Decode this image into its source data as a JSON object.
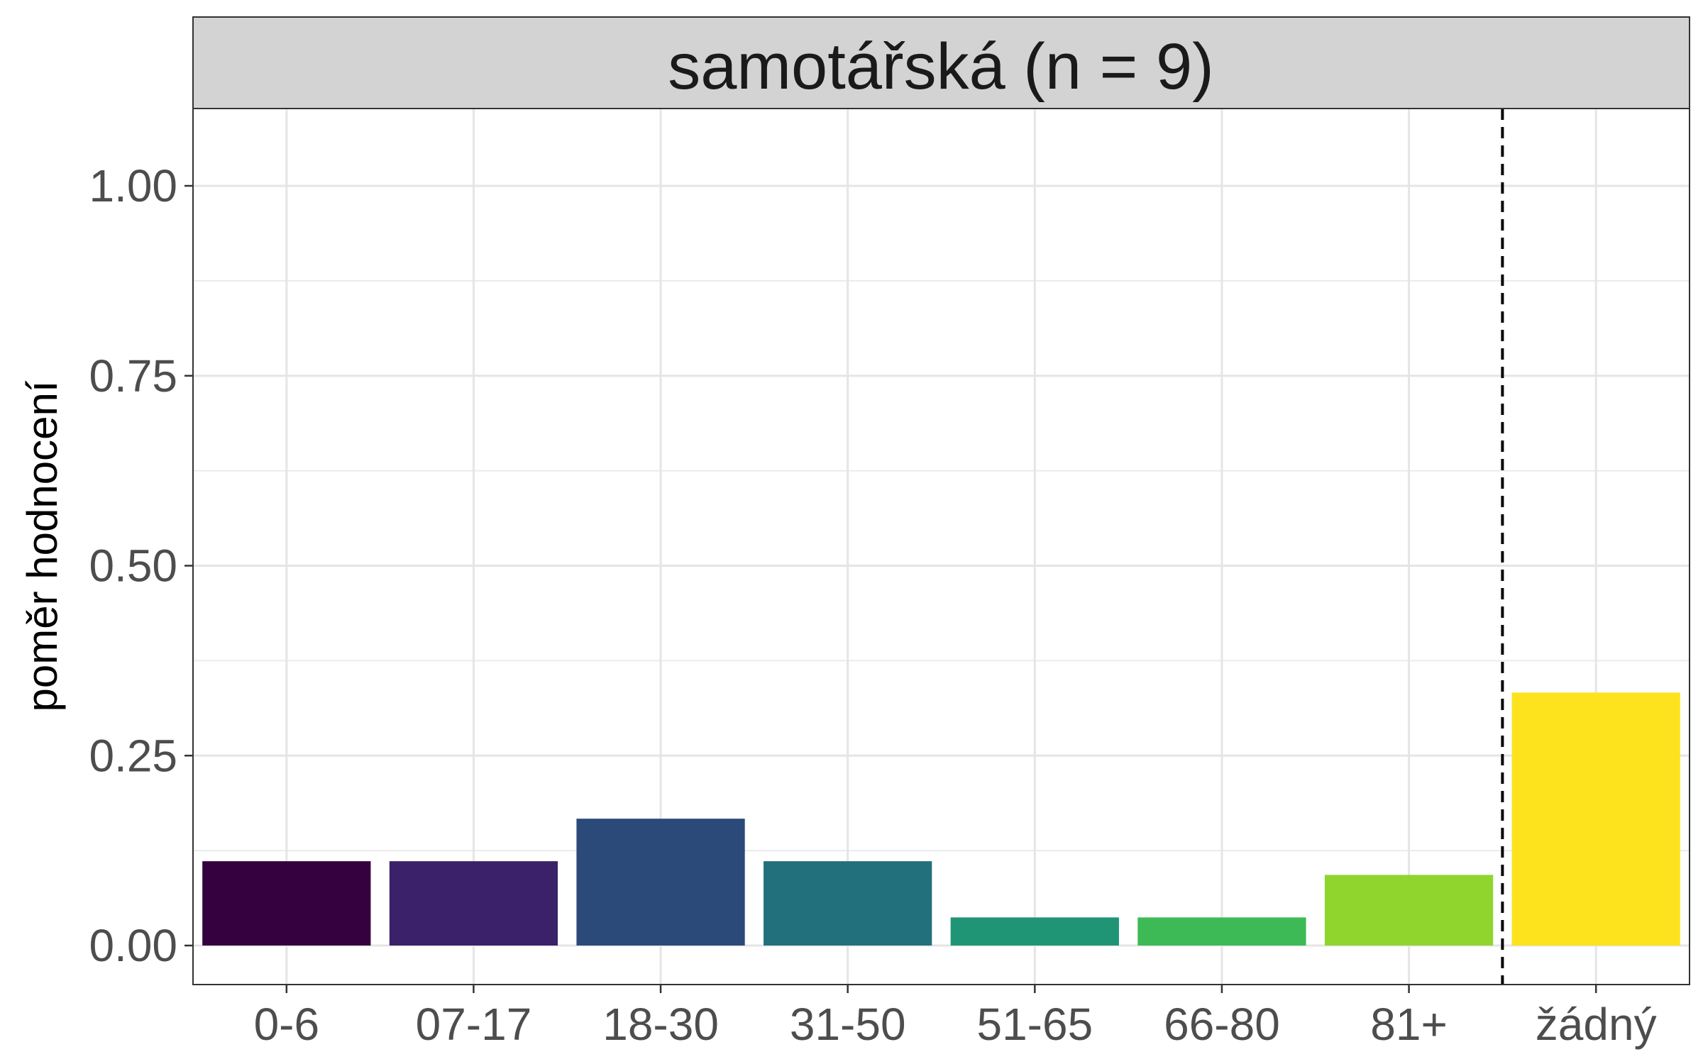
{
  "chart_data": {
    "type": "bar",
    "facet_title": "samotářská (n = 9)",
    "ylabel": "poměr hodnocení",
    "xlabel": "",
    "ylim": [
      0,
      1.1
    ],
    "yticks": [
      0,
      0.25,
      0.5,
      0.75,
      1.0
    ],
    "ytick_labels": [
      "0.00",
      "0.25",
      "0.50",
      "0.75",
      "1.00"
    ],
    "grid": true,
    "categories": [
      "0-6",
      "07-17",
      "18-30",
      "31-50",
      "51-65",
      "66-80",
      "81+",
      "žádný"
    ],
    "values": [
      0.111,
      0.111,
      0.167,
      0.111,
      0.037,
      0.037,
      0.093,
      0.333
    ],
    "colors": [
      "#35013F",
      "#3A2169",
      "#2B4A7A",
      "#21707C",
      "#1F9575",
      "#3DBA55",
      "#8FD52E",
      "#FDE31E"
    ],
    "separator_after_index": 6,
    "separator_style": "dashed"
  }
}
